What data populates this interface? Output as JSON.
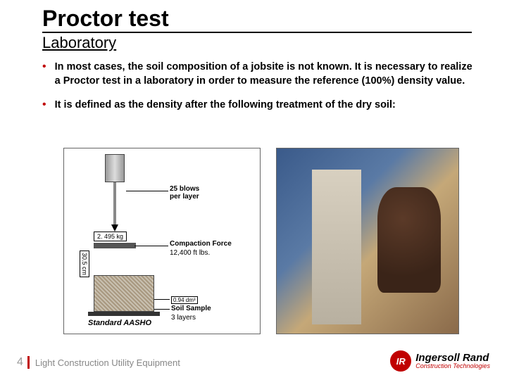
{
  "title": "Proctor test",
  "subtitle": "Laboratory",
  "bullets": [
    "In most cases, the soil composition of a jobsite is not known. It is necessary to realize a Proctor test in a laboratory in order to measure the reference (100%) density value.",
    "It is defined as the density after the following treatment of the dry soil:"
  ],
  "diagram": {
    "weight": "2. 495 kg",
    "height": "30.5 cm",
    "blows_l1": "25 blows",
    "blows_l2": "per layer",
    "force_l1": "Compaction Force",
    "force_l2": "12,400 ft lbs.",
    "volume": "0.94 dm³",
    "soil_l1": "Soil Sample",
    "soil_l2": "3 layers",
    "standard": "Standard AASHO"
  },
  "footer": {
    "page": "4",
    "text": "Light Construction Utility Equipment"
  },
  "logo": {
    "badge": "IR",
    "main": "Ingersoll Rand",
    "sub": "Construction Technologies"
  },
  "colors": {
    "accent": "#c00000",
    "muted": "#888888"
  }
}
